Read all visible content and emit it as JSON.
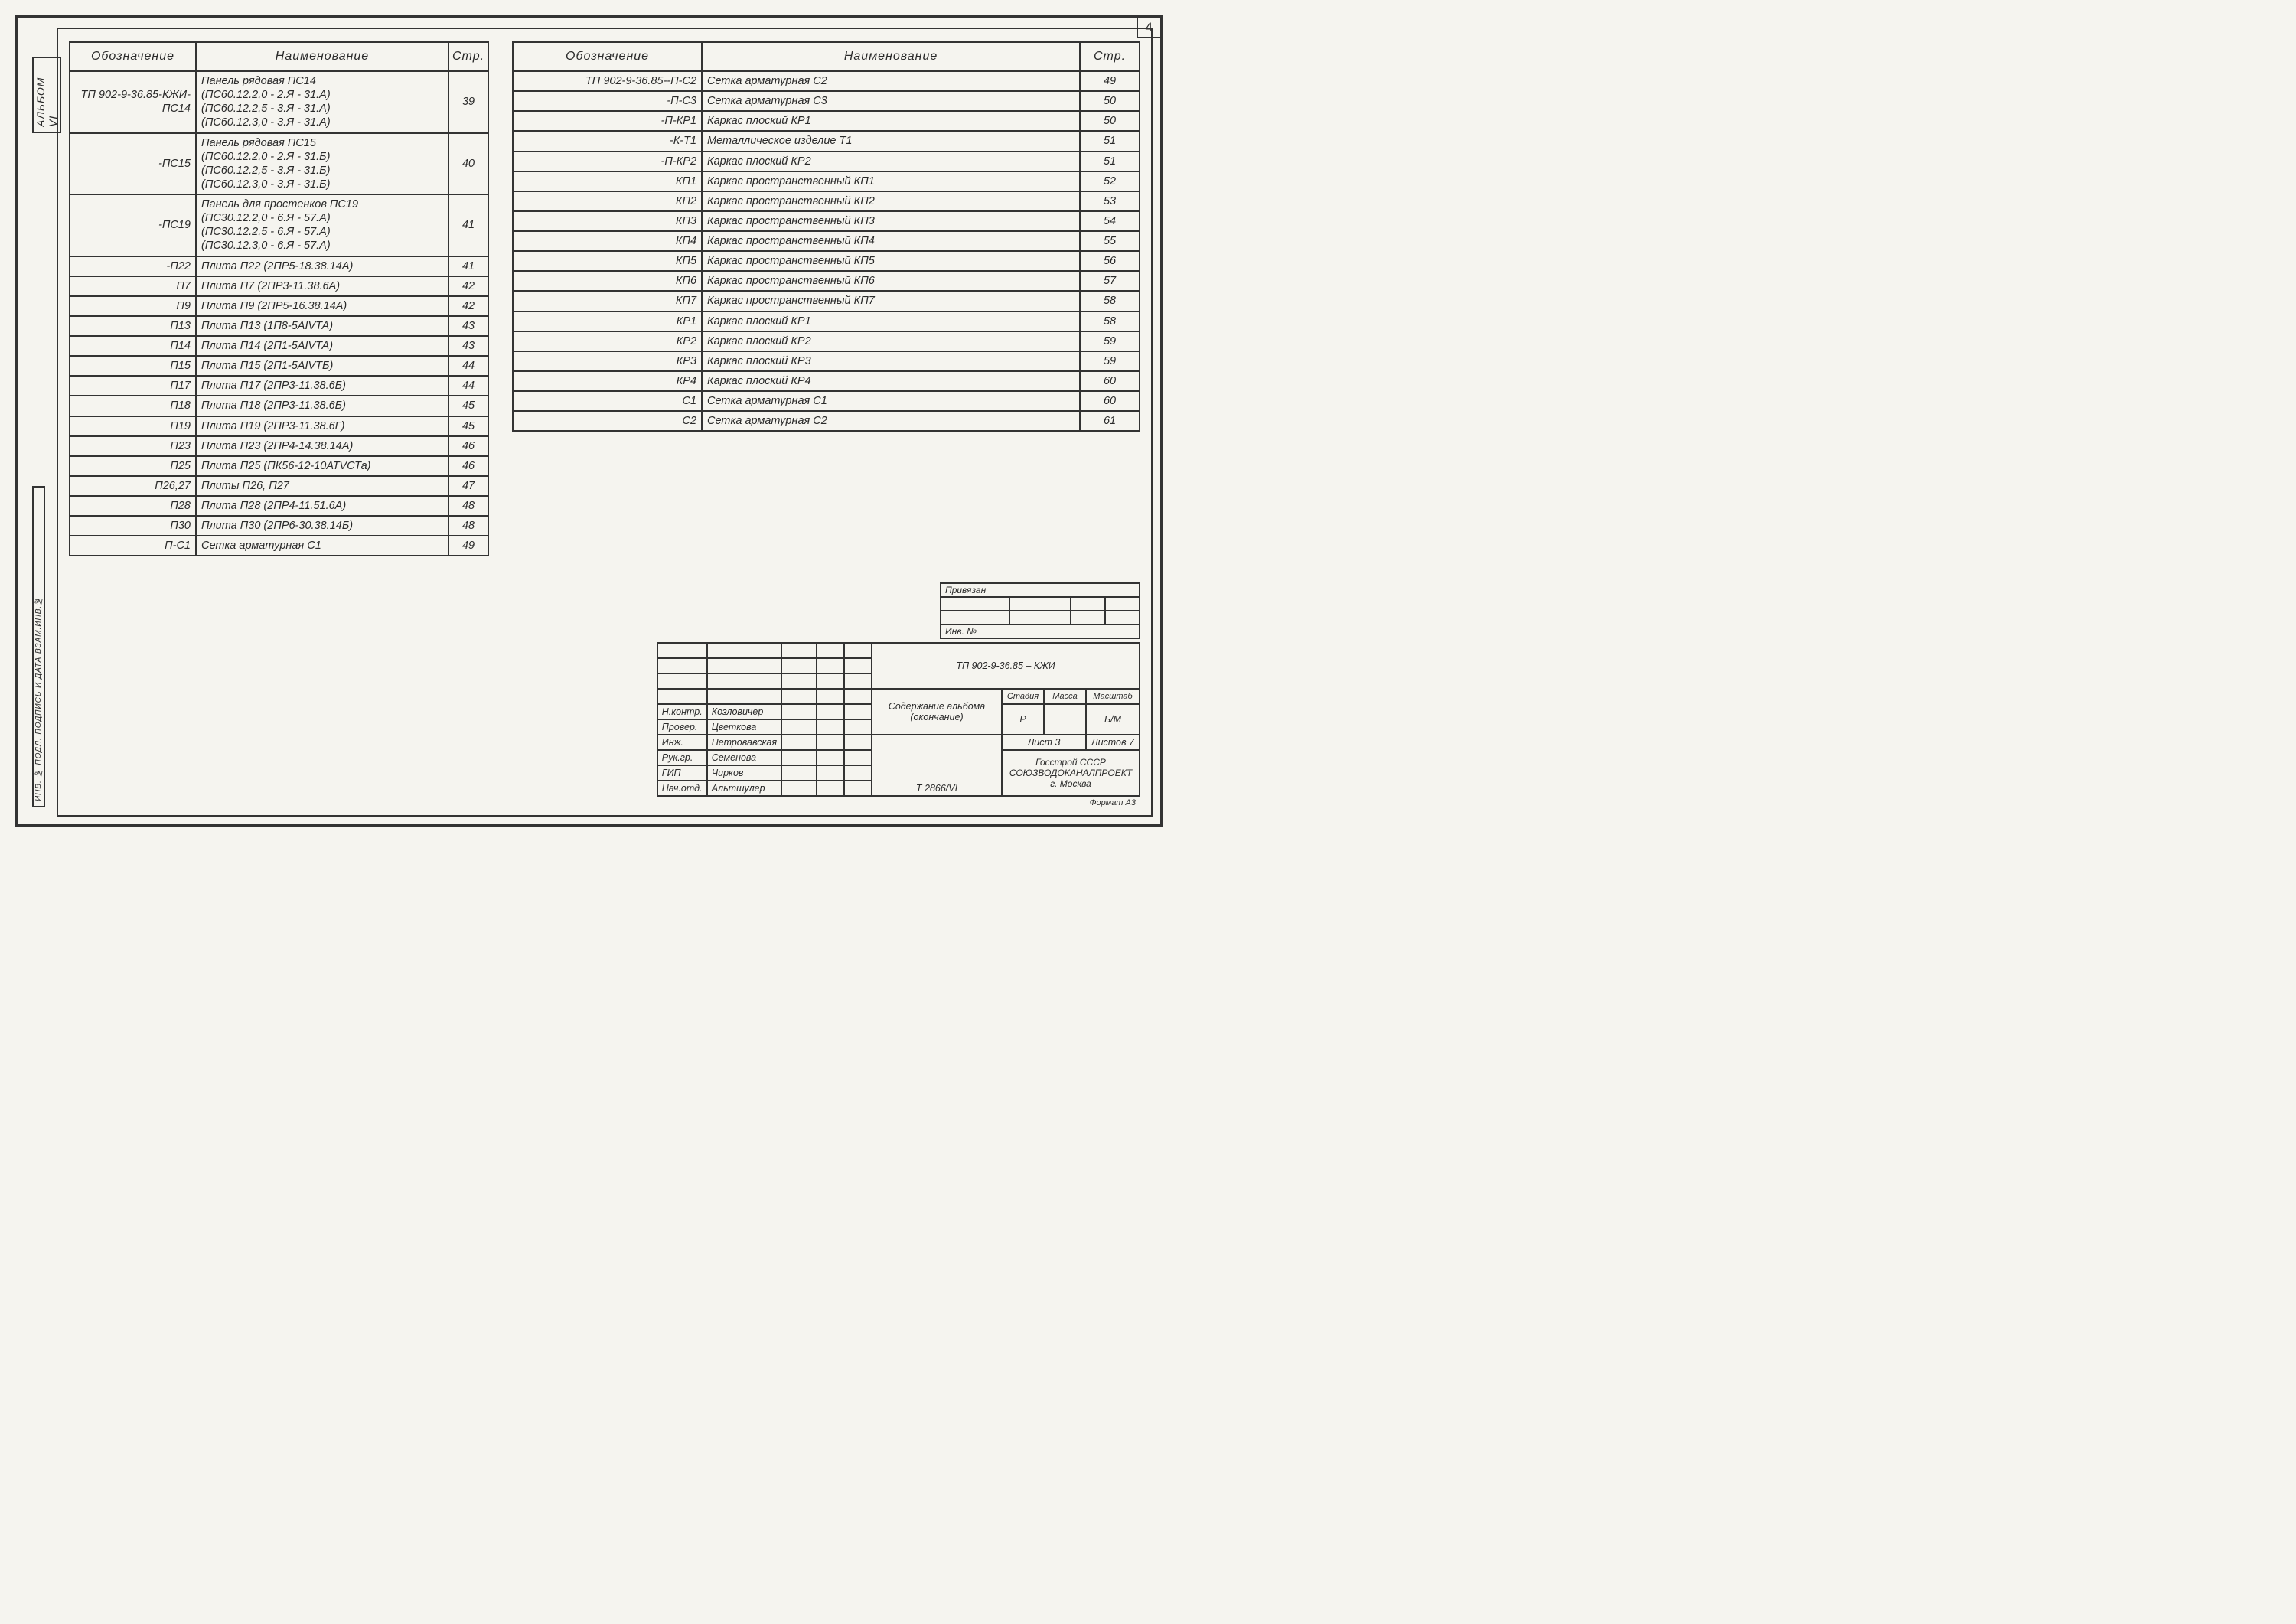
{
  "page_number": "4",
  "vlabel_top": "АЛЬБОМ VI",
  "vlabel_bot": "ИНВ. № ПОДЛ. ПОДПИСЬ И ДАТА  ВЗАМ.ИНВ.№",
  "headers": {
    "des": "Обозначение",
    "name": "Наименование",
    "pg": "Стр."
  },
  "left_rows": [
    {
      "d": "ТП 902-9-36.85-КЖИ-ПС14",
      "n": "Панель рядовая ПС14\n(ПС60.12.2,0 - 2.Я - 31.А)\n(ПС60.12.2,5 - 3.Я - 31.А)\n(ПС60.12.3,0 - 3.Я - 31.А)",
      "p": "39"
    },
    {
      "d": "-ПС15",
      "n": "Панель рядовая ПС15\n(ПС60.12.2,0 - 2.Я - 31.Б)\n(ПС60.12.2,5 - 3.Я - 31.Б)\n(ПС60.12.3,0 - 3.Я - 31.Б)",
      "p": "40"
    },
    {
      "d": "-ПС19",
      "n": "Панель для простенков ПС19\n(ПС30.12.2,0 - 6.Я - 57.А)\n(ПС30.12.2,5 - 6.Я - 57.А)\n(ПС30.12.3,0 - 6.Я - 57.А)",
      "p": "41"
    },
    {
      "d": "-П22",
      "n": "Плита П22 (2ПР5-18.38.14А)",
      "p": "41"
    },
    {
      "d": "П7",
      "n": "Плита П7 (2ПР3-11.38.6А)",
      "p": "42"
    },
    {
      "d": "П9",
      "n": "Плита П9 (2ПР5-16.38.14А)",
      "p": "42"
    },
    {
      "d": "П13",
      "n": "Плита П13 (1П8-5АIVТА)",
      "p": "43"
    },
    {
      "d": "П14",
      "n": "Плита П14 (2П1-5АIVТА)",
      "p": "43"
    },
    {
      "d": "П15",
      "n": "Плита П15 (2П1-5АIVТБ)",
      "p": "44"
    },
    {
      "d": "П17",
      "n": "Плита П17 (2ПР3-11.38.6Б)",
      "p": "44"
    },
    {
      "d": "П18",
      "n": "Плита П18 (2ПР3-11.38.6Б)",
      "p": "45"
    },
    {
      "d": "П19",
      "n": "Плита П19 (2ПР3-11.38.6Г)",
      "p": "45"
    },
    {
      "d": "П23",
      "n": "Плита П23 (2ПР4-14.38.14А)",
      "p": "46"
    },
    {
      "d": "П25",
      "n": "Плита П25 (ПК56-12-10АТVСТа)",
      "p": "46"
    },
    {
      "d": "П26,27",
      "n": "Плиты П26, П27",
      "p": "47"
    },
    {
      "d": "П28",
      "n": "Плита П28 (2ПР4-11.51.6А)",
      "p": "48"
    },
    {
      "d": "П30",
      "n": "Плита П30 (2ПР6-30.38.14Б)",
      "p": "48"
    },
    {
      "d": "П-С1",
      "n": "Сетка арматурная С1",
      "p": "49"
    }
  ],
  "right_rows": [
    {
      "d": "ТП 902-9-36.85--П-С2",
      "n": "Сетка арматурная С2",
      "p": "49"
    },
    {
      "d": "-П-С3",
      "n": "Сетка арматурная С3",
      "p": "50"
    },
    {
      "d": "-П-КР1",
      "n": "Каркас плоский КР1",
      "p": "50"
    },
    {
      "d": "-К-Т1",
      "n": "Металлическое изделие Т1",
      "p": "51"
    },
    {
      "d": "-П-КР2",
      "n": "Каркас плоский КР2",
      "p": "51"
    },
    {
      "d": "КП1",
      "n": "Каркас пространственный КП1",
      "p": "52"
    },
    {
      "d": "КП2",
      "n": "Каркас пространственный КП2",
      "p": "53"
    },
    {
      "d": "КП3",
      "n": "Каркас пространственный КП3",
      "p": "54"
    },
    {
      "d": "КП4",
      "n": "Каркас пространственный КП4",
      "p": "55"
    },
    {
      "d": "КП5",
      "n": "Каркас пространственный КП5",
      "p": "56"
    },
    {
      "d": "КП6",
      "n": "Каркас пространственный КП6",
      "p": "57"
    },
    {
      "d": "КП7",
      "n": "Каркас пространственный КП7",
      "p": "58"
    },
    {
      "d": "КР1",
      "n": "Каркас плоский КР1",
      "p": "58"
    },
    {
      "d": "КР2",
      "n": "Каркас плоский КР2",
      "p": "59"
    },
    {
      "d": "КР3",
      "n": "Каркас плоский КР3",
      "p": "59"
    },
    {
      "d": "КР4",
      "n": "Каркас плоский КР4",
      "p": "60"
    },
    {
      "d": "С1",
      "n": "Сетка арматурная С1",
      "p": "60"
    },
    {
      "d": "С2",
      "n": "Сетка арматурная С2",
      "p": "61"
    }
  ],
  "priv_label": "Привязан",
  "priv_inv": "Инв. №",
  "tb": {
    "project": "ТП 902-9-36.85 – КЖИ",
    "title": "Содержание альбома\n(окончание)",
    "stage_h": "Стадия",
    "mass_h": "Масса",
    "scale_h": "Масштаб",
    "stage": "Р",
    "scale": "Б/М",
    "sheet": "Лист 3",
    "sheets": "Листов 7",
    "org": "Госстрой СССР\nСОЮЗВОДОКАНАЛПРОЕКТ\nг. Москва",
    "archive": "Т 2866/VI",
    "format": "Формат А3",
    "roles": [
      [
        "Н.контр.",
        "Козловичер"
      ],
      [
        "Провер.",
        "Цветкова"
      ],
      [
        "Инж.",
        "Петровавская"
      ],
      [
        "Рук.гр.",
        "Семенова"
      ],
      [
        "ГИП",
        "Чирков"
      ],
      [
        "Нач.отд.",
        "Альтшулер"
      ]
    ]
  }
}
